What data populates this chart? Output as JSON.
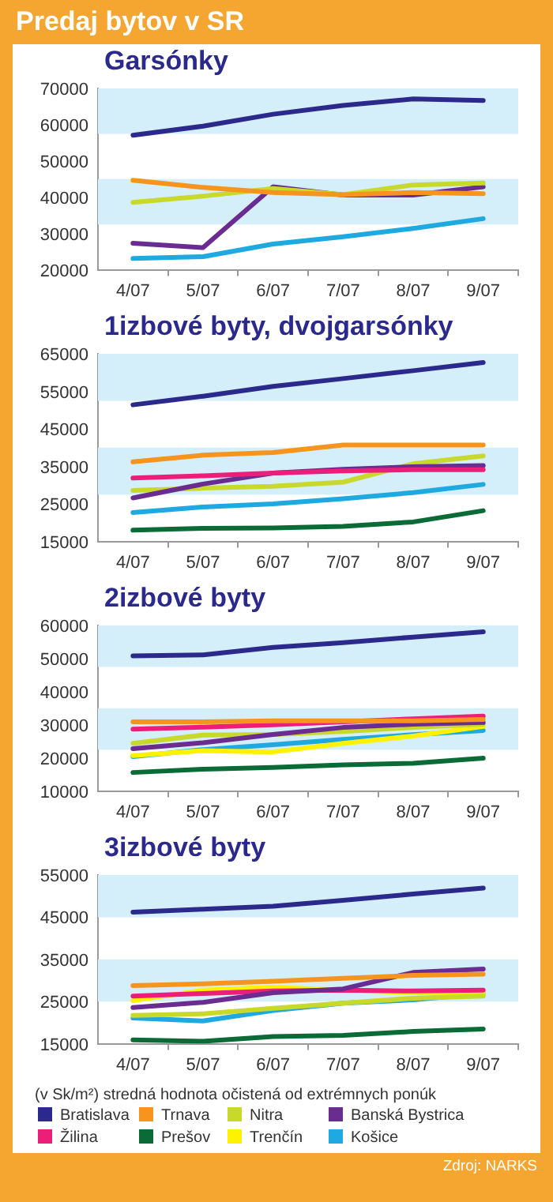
{
  "chart_data": [
    {
      "type": "line",
      "title": "Predaj bytov v SR",
      "subtitle": "Garsónky",
      "categories": [
        "4/07",
        "5/07",
        "6/07",
        "7/07",
        "8/07",
        "9/07"
      ],
      "ylim": [
        20000,
        70000
      ],
      "yticks": [
        20000,
        30000,
        40000,
        50000,
        60000,
        70000
      ],
      "grid": false,
      "legend": "bottom",
      "bands": [
        {
          "axis": "y",
          "from": 57500,
          "to": 70000,
          "color": "#d4eefa"
        },
        {
          "axis": "y",
          "from": 32500,
          "to": 45000,
          "color": "#d4eefa"
        }
      ],
      "series": [
        {
          "name": "Bratislava",
          "color": "#2b2a8c",
          "values": [
            57100,
            59600,
            62900,
            65300,
            67100,
            66700
          ]
        },
        {
          "name": "Trnava",
          "color": "#f7941d",
          "values": [
            44700,
            42700,
            41300,
            40700,
            41300,
            41000
          ]
        },
        {
          "name": "Nitra",
          "color": "#c8d92b",
          "values": [
            38600,
            40300,
            42400,
            40700,
            43400,
            43900
          ]
        },
        {
          "name": "Banská Bystrica",
          "color": "#6b2c91",
          "values": [
            27300,
            26100,
            42900,
            40600,
            40600,
            42900
          ]
        },
        {
          "name": "Košice",
          "color": "#1ea9e1",
          "values": [
            23100,
            23600,
            27100,
            29100,
            31400,
            34100
          ]
        }
      ]
    },
    {
      "type": "line",
      "title": "1izbové byty, dvojgarsónky",
      "categories": [
        "4/07",
        "5/07",
        "6/07",
        "7/07",
        "8/07",
        "9/07"
      ],
      "ylim": [
        15000,
        65000
      ],
      "yticks": [
        15000,
        25000,
        35000,
        45000,
        55000,
        65000
      ],
      "grid": false,
      "legend": "bottom",
      "bands": [
        {
          "axis": "y",
          "from": 52500,
          "to": 65000,
          "color": "#d4eefa"
        },
        {
          "axis": "y",
          "from": 27500,
          "to": 40000,
          "color": "#d4eefa"
        }
      ],
      "series": [
        {
          "name": "Bratislava",
          "color": "#2b2a8c",
          "values": [
            51400,
            53700,
            56300,
            58400,
            60500,
            62700
          ]
        },
        {
          "name": "Trnava",
          "color": "#f7941d",
          "values": [
            36200,
            38000,
            38700,
            40700,
            40700,
            40700
          ]
        },
        {
          "name": "Žilina",
          "color": "#ec1e79",
          "values": [
            31900,
            32500,
            33200,
            33800,
            34100,
            34100
          ]
        },
        {
          "name": "Banská Bystrica",
          "color": "#6b2c91",
          "values": [
            26600,
            30300,
            33200,
            34200,
            34900,
            35200
          ]
        },
        {
          "name": "Nitra",
          "color": "#c8d92b",
          "values": [
            28600,
            29200,
            29700,
            30800,
            35700,
            37800
          ]
        },
        {
          "name": "Košice",
          "color": "#1ea9e1",
          "values": [
            22700,
            24200,
            25000,
            26400,
            28000,
            30200
          ]
        },
        {
          "name": "Prešov",
          "color": "#0a6b36",
          "values": [
            18000,
            18500,
            18600,
            19000,
            20200,
            23200
          ]
        }
      ]
    },
    {
      "type": "line",
      "title": "2izbové byty",
      "categories": [
        "4/07",
        "5/07",
        "6/07",
        "7/07",
        "8/07",
        "9/07"
      ],
      "ylim": [
        10000,
        60000
      ],
      "yticks": [
        10000,
        20000,
        30000,
        40000,
        50000,
        60000
      ],
      "grid": false,
      "legend": "bottom",
      "bands": [
        {
          "axis": "y",
          "from": 47500,
          "to": 60000,
          "color": "#d4eefa"
        },
        {
          "axis": "y",
          "from": 22500,
          "to": 35000,
          "color": "#d4eefa"
        }
      ],
      "series": [
        {
          "name": "Bratislava",
          "color": "#2b2a8c",
          "values": [
            50800,
            51100,
            53400,
            54800,
            56500,
            58100
          ]
        },
        {
          "name": "Trnava",
          "color": "#f7941d",
          "values": [
            30900,
            30900,
            31200,
            31200,
            31200,
            31600
          ]
        },
        {
          "name": "Žilina",
          "color": "#ec1e79",
          "values": [
            28700,
            29300,
            30000,
            30900,
            31800,
            32600
          ]
        },
        {
          "name": "Banská Bystrica",
          "color": "#6b2c91",
          "values": [
            22800,
            24600,
            27100,
            29200,
            30200,
            30700
          ]
        },
        {
          "name": "Nitra",
          "color": "#c8d92b",
          "values": [
            24400,
            26900,
            27100,
            28000,
            29200,
            30200
          ]
        },
        {
          "name": "Trenčín",
          "color": "#fff200",
          "values": [
            20700,
            22200,
            21800,
            24400,
            26600,
            29500
          ]
        },
        {
          "name": "Košice",
          "color": "#1ea9e1",
          "values": [
            20400,
            22500,
            24000,
            25600,
            27000,
            28300
          ]
        },
        {
          "name": "Prešov",
          "color": "#0a6b36",
          "values": [
            15600,
            16600,
            17100,
            17900,
            18400,
            19900
          ]
        }
      ]
    },
    {
      "type": "line",
      "title": "3izbové byty",
      "categories": [
        "4/07",
        "5/07",
        "6/07",
        "7/07",
        "8/07",
        "9/07"
      ],
      "ylim": [
        15000,
        55000
      ],
      "yticks": [
        15000,
        25000,
        35000,
        45000,
        55000
      ],
      "grid": false,
      "legend": "bottom",
      "bands": [
        {
          "axis": "y",
          "from": 45000,
          "to": 55000,
          "color": "#d4eefa"
        },
        {
          "axis": "y",
          "from": 25000,
          "to": 35000,
          "color": "#d4eefa"
        }
      ],
      "annotations": [
        "(v Sk/m²)  stredná hodnota očistená od extrémnych ponúk",
        "Zdroj: NARKS"
      ],
      "series": [
        {
          "name": "Bratislava",
          "color": "#2b2a8c",
          "values": [
            46200,
            46900,
            47600,
            49000,
            50500,
            51900
          ]
        },
        {
          "name": "Trnava",
          "color": "#f7941d",
          "values": [
            28800,
            29200,
            29800,
            30500,
            31200,
            31500
          ]
        },
        {
          "name": "Nitra",
          "color": "#c8d92b",
          "values": [
            21700,
            22100,
            23400,
            24600,
            25800,
            26300
          ]
        },
        {
          "name": "Banská Bystrica",
          "color": "#6b2c91",
          "values": [
            23600,
            24800,
            27100,
            28000,
            31900,
            32700
          ]
        },
        {
          "name": "Žilina",
          "color": "#ec1e79",
          "values": [
            26300,
            26900,
            27500,
            27700,
            27500,
            27700
          ]
        },
        {
          "name": "Prešov",
          "color": "#0a6b36",
          "values": [
            15900,
            15600,
            16700,
            17000,
            17900,
            18500
          ]
        },
        {
          "name": "Trenčín",
          "color": "#fff200",
          "values": [
            25200,
            27700,
            28400,
            27700,
            27100,
            26900
          ]
        },
        {
          "name": "Košice",
          "color": "#1ea9e1",
          "values": [
            21100,
            20400,
            22900,
            24600,
            25400,
            26900
          ]
        }
      ]
    }
  ]
}
